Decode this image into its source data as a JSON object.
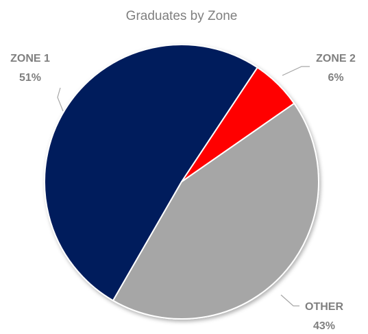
{
  "chart_data": {
    "type": "pie",
    "title": "Graduates by Zone",
    "categories": [
      "ZONE 1",
      "ZONE 2",
      "OTHER"
    ],
    "values": [
      51,
      6,
      43
    ],
    "value_labels": [
      "51%",
      "6%",
      "43%"
    ],
    "colors": [
      "#041e5c",
      "#ff0000",
      "#a6a6a6"
    ]
  }
}
